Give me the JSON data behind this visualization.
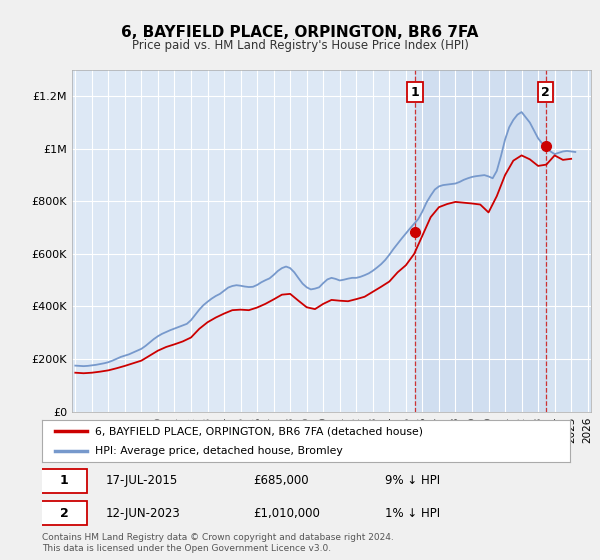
{
  "title": "6, BAYFIELD PLACE, ORPINGTON, BR6 7FA",
  "subtitle": "Price paid vs. HM Land Registry's House Price Index (HPI)",
  "ylabel_ticks": [
    "£0",
    "£200K",
    "£400K",
    "£600K",
    "£800K",
    "£1M",
    "£1.2M"
  ],
  "ytick_values": [
    0,
    200000,
    400000,
    600000,
    800000,
    1000000,
    1200000
  ],
  "ylim": [
    0,
    1300000
  ],
  "xlim_start": 1994.8,
  "xlim_end": 2026.2,
  "red_line_color": "#cc0000",
  "blue_line_color": "#7799cc",
  "marker_color": "#cc0000",
  "dashed_color": "#cc3333",
  "plot_bg": "#dde8f5",
  "grid_color": "#ffffff",
  "shade_color": "#c8d8ee",
  "legend_label_red": "6, BAYFIELD PLACE, ORPINGTON, BR6 7FA (detached house)",
  "legend_label_blue": "HPI: Average price, detached house, Bromley",
  "sale1_date": "17-JUL-2015",
  "sale1_price": 685000,
  "sale1_pct": "9% ↓ HPI",
  "sale2_date": "12-JUN-2023",
  "sale2_price": 1010000,
  "sale2_pct": "1% ↓ HPI",
  "footer": "Contains HM Land Registry data © Crown copyright and database right 2024.\nThis data is licensed under the Open Government Licence v3.0.",
  "hpi_years": [
    1995.0,
    1995.25,
    1995.5,
    1995.75,
    1996.0,
    1996.25,
    1996.5,
    1996.75,
    1997.0,
    1997.25,
    1997.5,
    1997.75,
    1998.0,
    1998.25,
    1998.5,
    1998.75,
    1999.0,
    1999.25,
    1999.5,
    1999.75,
    2000.0,
    2000.25,
    2000.5,
    2000.75,
    2001.0,
    2001.25,
    2001.5,
    2001.75,
    2002.0,
    2002.25,
    2002.5,
    2002.75,
    2003.0,
    2003.25,
    2003.5,
    2003.75,
    2004.0,
    2004.25,
    2004.5,
    2004.75,
    2005.0,
    2005.25,
    2005.5,
    2005.75,
    2006.0,
    2006.25,
    2006.5,
    2006.75,
    2007.0,
    2007.25,
    2007.5,
    2007.75,
    2008.0,
    2008.25,
    2008.5,
    2008.75,
    2009.0,
    2009.25,
    2009.5,
    2009.75,
    2010.0,
    2010.25,
    2010.5,
    2010.75,
    2011.0,
    2011.25,
    2011.5,
    2011.75,
    2012.0,
    2012.25,
    2012.5,
    2012.75,
    2013.0,
    2013.25,
    2013.5,
    2013.75,
    2014.0,
    2014.25,
    2014.5,
    2014.75,
    2015.0,
    2015.25,
    2015.5,
    2015.75,
    2016.0,
    2016.25,
    2016.5,
    2016.75,
    2017.0,
    2017.25,
    2017.5,
    2017.75,
    2018.0,
    2018.25,
    2018.5,
    2018.75,
    2019.0,
    2019.25,
    2019.5,
    2019.75,
    2020.0,
    2020.25,
    2020.5,
    2020.75,
    2021.0,
    2021.25,
    2021.5,
    2021.75,
    2022.0,
    2022.25,
    2022.5,
    2022.75,
    2023.0,
    2023.25,
    2023.5,
    2023.75,
    2024.0,
    2024.25,
    2024.5,
    2024.75,
    2025.0,
    2025.25
  ],
  "hpi_values": [
    175000,
    174000,
    173000,
    174000,
    176000,
    178000,
    181000,
    184000,
    188000,
    194000,
    201000,
    208000,
    213000,
    218000,
    225000,
    232000,
    239000,
    250000,
    263000,
    276000,
    287000,
    296000,
    303000,
    310000,
    316000,
    322000,
    328000,
    334000,
    348000,
    368000,
    388000,
    405000,
    418000,
    430000,
    440000,
    448000,
    460000,
    472000,
    478000,
    481000,
    479000,
    476000,
    474000,
    475000,
    482000,
    492000,
    500000,
    507000,
    520000,
    535000,
    546000,
    552000,
    546000,
    530000,
    508000,
    487000,
    473000,
    465000,
    468000,
    473000,
    489000,
    503000,
    509000,
    505000,
    499000,
    502000,
    506000,
    509000,
    509000,
    513000,
    519000,
    526000,
    536000,
    548000,
    561000,
    577000,
    597000,
    619000,
    639000,
    659000,
    678000,
    697000,
    715000,
    733000,
    762000,
    796000,
    822000,
    845000,
    857000,
    862000,
    864000,
    866000,
    868000,
    874000,
    882000,
    888000,
    893000,
    896000,
    898000,
    900000,
    895000,
    888000,
    916000,
    972000,
    1035000,
    1082000,
    1110000,
    1130000,
    1140000,
    1120000,
    1100000,
    1070000,
    1040000,
    1020000,
    1005000,
    990000,
    980000,
    985000,
    990000,
    992000,
    990000,
    988000
  ],
  "red_years": [
    1995.0,
    1995.5,
    1996.0,
    1996.5,
    1997.0,
    1997.5,
    1998.0,
    1998.5,
    1999.0,
    1999.5,
    2000.0,
    2000.5,
    2001.0,
    2001.5,
    2002.0,
    2002.5,
    2003.0,
    2003.5,
    2004.0,
    2004.5,
    2005.0,
    2005.5,
    2006.0,
    2006.5,
    2007.0,
    2007.5,
    2008.0,
    2008.5,
    2009.0,
    2009.5,
    2010.0,
    2010.5,
    2011.0,
    2011.5,
    2012.0,
    2012.5,
    2013.0,
    2013.5,
    2014.0,
    2014.5,
    2015.0,
    2015.5,
    2016.0,
    2016.5,
    2017.0,
    2017.5,
    2018.0,
    2018.5,
    2019.0,
    2019.5,
    2020.0,
    2020.5,
    2021.0,
    2021.5,
    2022.0,
    2022.5,
    2023.0,
    2023.5,
    2024.0,
    2024.5,
    2025.0
  ],
  "red_values": [
    148000,
    146000,
    148000,
    152000,
    157000,
    165000,
    174000,
    184000,
    194000,
    213000,
    232000,
    246000,
    256000,
    267000,
    282000,
    315000,
    340000,
    358000,
    373000,
    386000,
    388000,
    386000,
    396000,
    410000,
    427000,
    445000,
    448000,
    422000,
    397000,
    390000,
    410000,
    425000,
    422000,
    420000,
    428000,
    437000,
    456000,
    475000,
    495000,
    530000,
    557000,
    600000,
    670000,
    740000,
    778000,
    790000,
    798000,
    795000,
    792000,
    788000,
    758000,
    820000,
    900000,
    955000,
    975000,
    960000,
    935000,
    940000,
    975000,
    958000,
    962000
  ],
  "sale1_x": 2015.54,
  "sale1_y": 685000,
  "sale2_x": 2023.45,
  "sale2_y": 1010000
}
